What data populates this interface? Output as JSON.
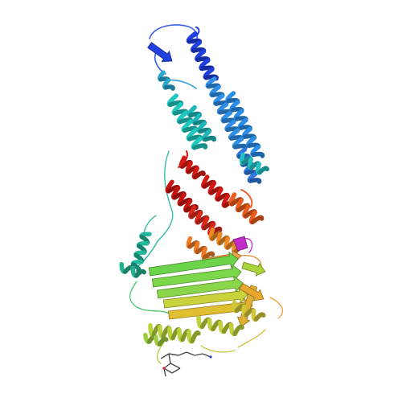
{
  "figure": {
    "kind": "protein ribbon rendering",
    "background": "#ffffff",
    "color_scheme": "rainbow N-to-C",
    "colors": {
      "blue": "#1f3fe0",
      "light_blue": "#2f8fe8",
      "cyan": "#20c8c0",
      "teal": "#22b89a",
      "green": "#6cd44a",
      "yellow_green": "#b8d43a",
      "yellow": "#e0c030",
      "orange": "#ef8a24",
      "orange_red": "#ec5a1e",
      "red": "#d41a12",
      "magenta": "#c02cc8",
      "ligand": "#4a4a4a"
    },
    "elements": [
      {
        "name": "n-terminal-helix",
        "color": "blue"
      },
      {
        "name": "long-helix-pair",
        "color": "light_blue"
      },
      {
        "name": "cyan-helix-bundle",
        "color": "cyan"
      },
      {
        "name": "red-helical-domain",
        "color": "red"
      },
      {
        "name": "orange-loop-region",
        "color": "orange"
      },
      {
        "name": "teal-linker-helix",
        "color": "teal"
      },
      {
        "name": "green-beta-sheet",
        "color": "green"
      },
      {
        "name": "yellow-beta-sheet",
        "color": "yellow"
      },
      {
        "name": "yellow-green-helices",
        "color": "yellow_green"
      },
      {
        "name": "bound-ligand",
        "color": "ligand"
      }
    ]
  }
}
